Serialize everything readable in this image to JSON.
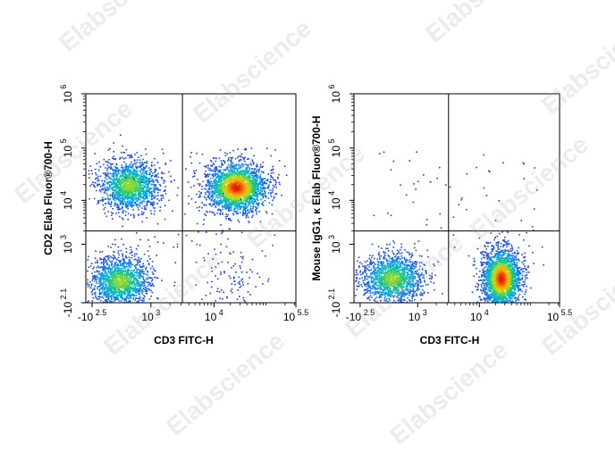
{
  "watermark": "Elabscience",
  "chart_data": [
    {
      "type": "scatter",
      "subtype": "flow-cytometry-density-dot-plot",
      "xlabel": "CD3 FITC-H",
      "ylabel": "CD2 Elab Fluor®700-H",
      "x_ticks": [
        {
          "value": -316,
          "base": "-10",
          "exp": "2.5"
        },
        {
          "value": 1000,
          "base": "10",
          "exp": "3"
        },
        {
          "value": 10000,
          "base": "10",
          "exp": "4"
        },
        {
          "value": 316228,
          "base": "10",
          "exp": "5.5"
        }
      ],
      "y_ticks": [
        {
          "value": -126,
          "base": "-10",
          "exp": "2.1"
        },
        {
          "value": 1000,
          "base": "10",
          "exp": "3"
        },
        {
          "value": 10000,
          "base": "10",
          "exp": "4"
        },
        {
          "value": 100000,
          "base": "10",
          "exp": "5"
        },
        {
          "value": 1000000,
          "base": "10",
          "exp": "6"
        }
      ],
      "quadrant_gate": {
        "x": 3160,
        "y": 2000
      },
      "populations": [
        {
          "x": 500,
          "y": 20000,
          "density": "medium"
        },
        {
          "x": 25000,
          "y": 18000,
          "density": "high"
        },
        {
          "x": 300,
          "y": 300,
          "density": "medium"
        },
        {
          "x": 20000,
          "y": 300,
          "density": "sparse"
        }
      ],
      "grid": false
    },
    {
      "type": "scatter",
      "subtype": "flow-cytometry-density-dot-plot",
      "xlabel": "CD3 FITC-H",
      "ylabel": "Mouse IgG1, κ Elab Fluor®700-H",
      "x_ticks": [
        {
          "value": -316,
          "base": "-10",
          "exp": "2.5"
        },
        {
          "value": 1000,
          "base": "10",
          "exp": "3"
        },
        {
          "value": 10000,
          "base": "10",
          "exp": "4"
        },
        {
          "value": 316228,
          "base": "10",
          "exp": "5.5"
        }
      ],
      "y_ticks": [
        {
          "value": -126,
          "base": "-10",
          "exp": "2.1"
        },
        {
          "value": 1000,
          "base": "10",
          "exp": "3"
        },
        {
          "value": 10000,
          "base": "10",
          "exp": "4"
        },
        {
          "value": 100000,
          "base": "10",
          "exp": "5"
        },
        {
          "value": 1000000,
          "base": "10",
          "exp": "6"
        }
      ],
      "quadrant_gate": {
        "x": 3160,
        "y": 2000
      },
      "populations": [
        {
          "x": 400,
          "y": 350,
          "density": "medium"
        },
        {
          "x": 25000,
          "y": 350,
          "density": "high"
        }
      ],
      "grid": false
    }
  ]
}
